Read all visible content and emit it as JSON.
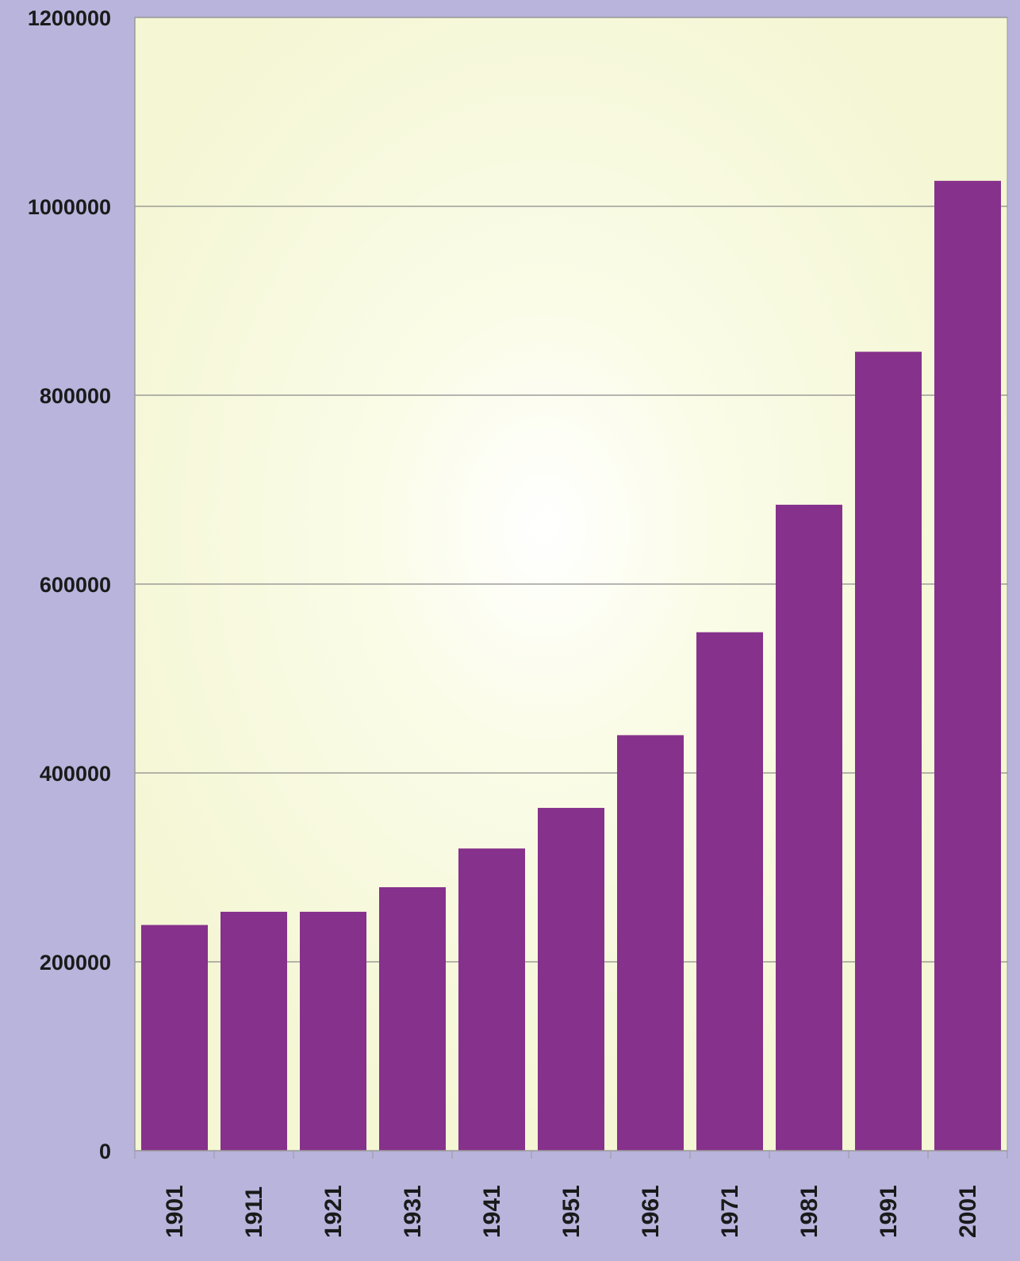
{
  "colors": {
    "page_background": "#b8b4dc",
    "plot_background": "#f4f6d4",
    "bar": "#86318c",
    "gridline": "#8a8a8a",
    "text": "#1a1a1a"
  },
  "chart_data": {
    "type": "bar",
    "categories": [
      "1901",
      "1911",
      "1921",
      "1931",
      "1941",
      "1951",
      "1961",
      "1971",
      "1981",
      "1991",
      "2001"
    ],
    "values": [
      239000,
      253000,
      253000,
      279000,
      320000,
      363000,
      440000,
      549000,
      684000,
      846000,
      1027000
    ],
    "title": "",
    "xlabel": "",
    "ylabel": "",
    "ylim": [
      0,
      1200000
    ],
    "yticks": [
      0,
      200000,
      400000,
      600000,
      800000,
      1000000,
      1200000
    ],
    "ytick_labels": [
      "0",
      "200000",
      "400000",
      "600000",
      "800000",
      "1000000",
      "1200000"
    ],
    "grid": true,
    "legend": "none"
  }
}
